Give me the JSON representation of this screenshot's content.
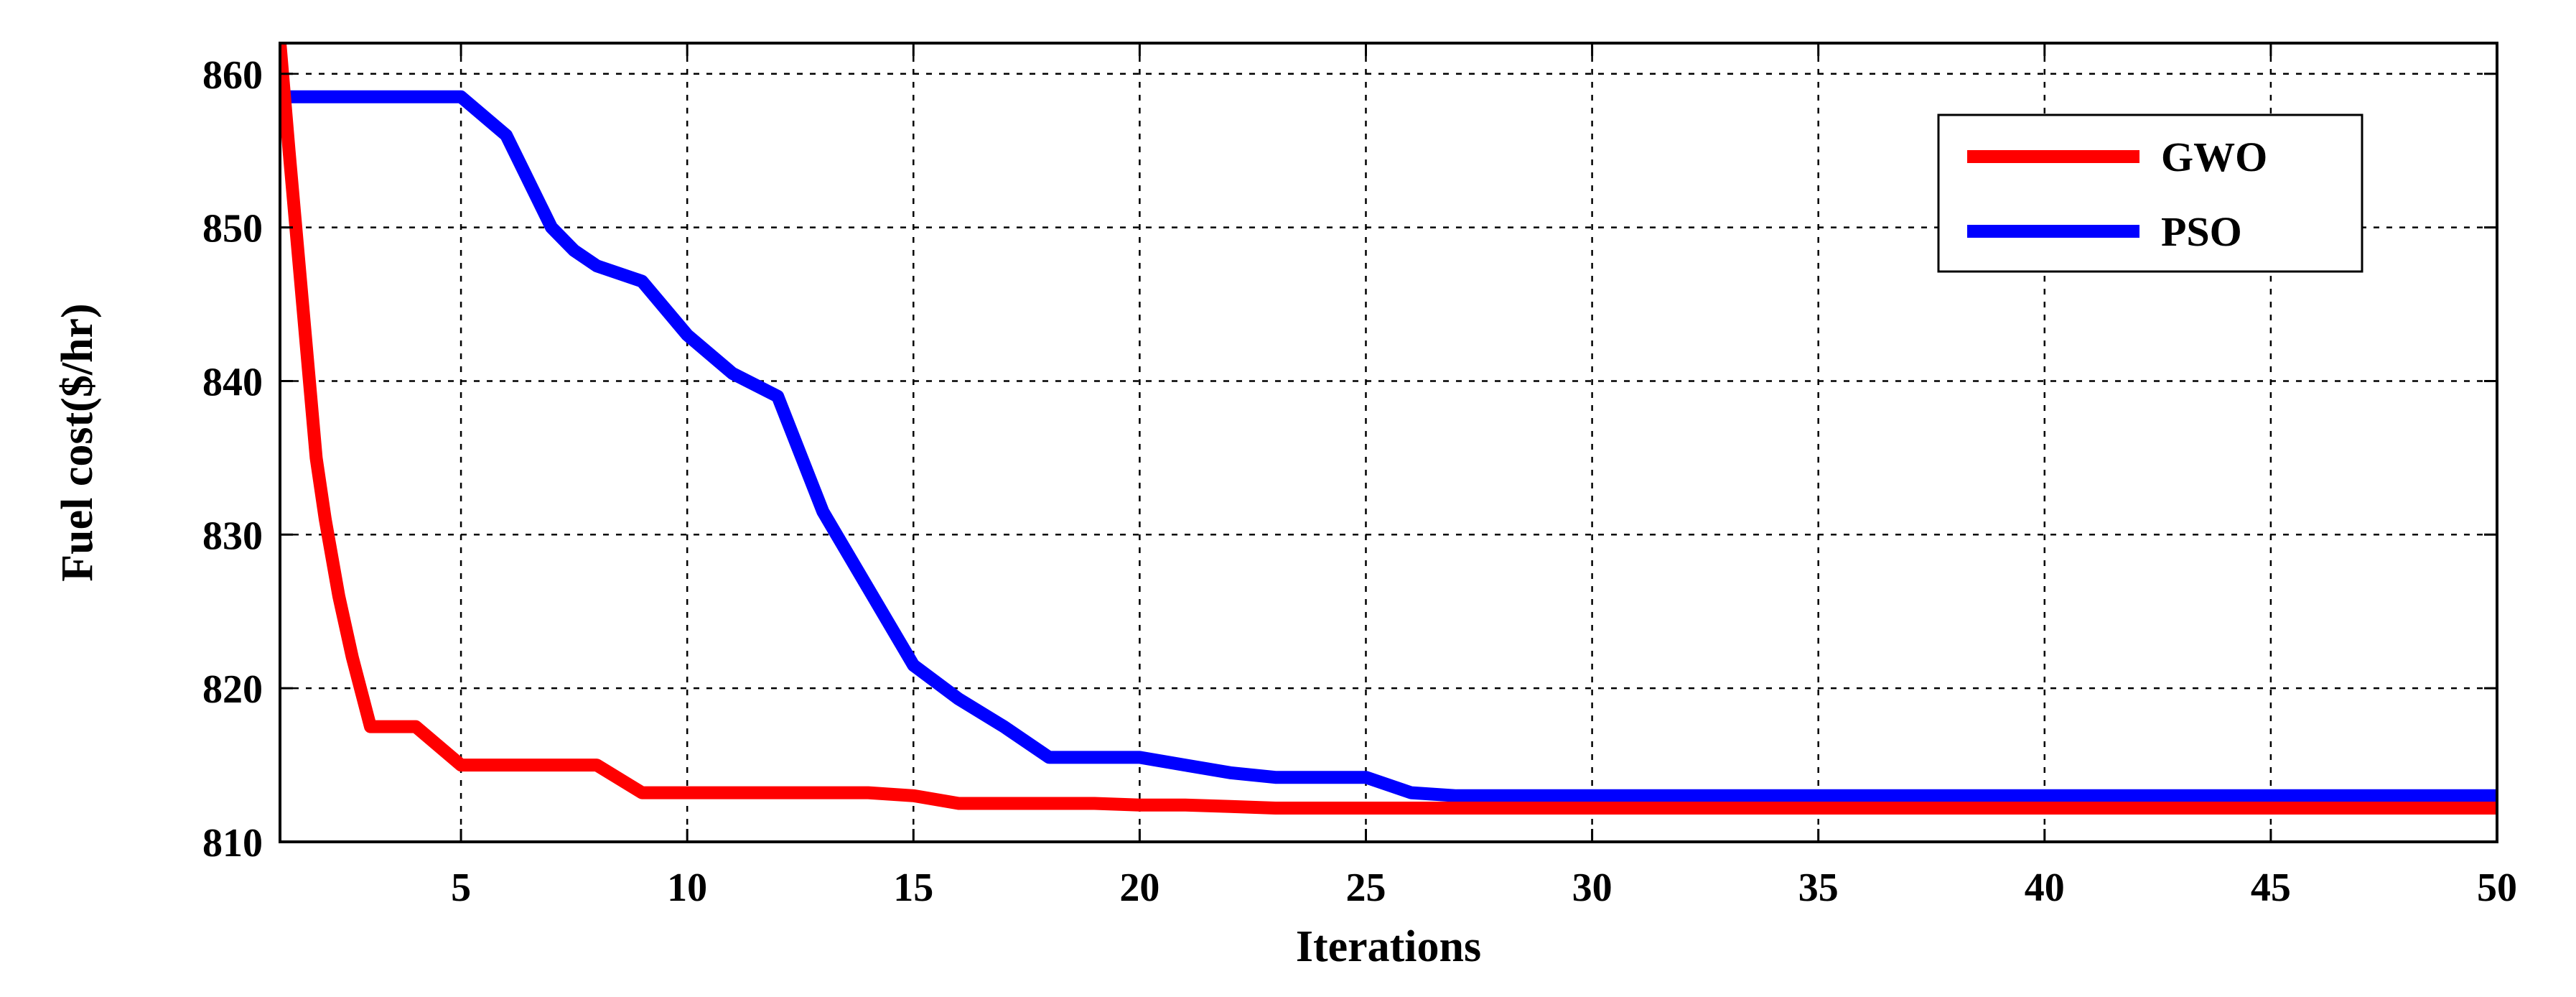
{
  "chart_data": {
    "type": "line",
    "title": "",
    "xlabel": "Iterations",
    "ylabel": "Fuel cost($/hr)",
    "xlim": [
      1,
      50
    ],
    "ylim": [
      810,
      862
    ],
    "xticks": [
      5,
      10,
      15,
      20,
      25,
      30,
      35,
      40,
      45,
      50
    ],
    "yticks": [
      810,
      820,
      830,
      840,
      850,
      860
    ],
    "grid": true,
    "legend_position": "top-right",
    "series": [
      {
        "name": "GWO",
        "color": "#ff0000",
        "x": [
          1,
          1.2,
          1.5,
          1.8,
          2,
          2.3,
          2.6,
          3,
          4,
          5,
          6,
          7,
          8,
          9,
          10,
          11,
          12,
          13,
          14,
          15,
          16,
          17,
          18,
          19,
          20,
          21,
          22,
          23,
          24,
          25,
          26,
          27,
          28,
          30,
          35,
          40,
          45,
          50
        ],
        "y": [
          862,
          855,
          845,
          835,
          831,
          826,
          822,
          817.5,
          817.5,
          815,
          815,
          815,
          815,
          813.2,
          813.2,
          813.2,
          813.2,
          813.2,
          813.2,
          813,
          812.5,
          812.5,
          812.5,
          812.5,
          812.4,
          812.4,
          812.3,
          812.2,
          812.2,
          812.2,
          812.2,
          812.2,
          812.2,
          812.2,
          812.2,
          812.2,
          812.2,
          812.2
        ]
      },
      {
        "name": "PSO",
        "color": "#0000ff",
        "x": [
          1,
          2,
          3,
          4,
          5,
          6,
          6.5,
          7,
          7.5,
          8,
          9,
          10,
          11,
          12,
          13,
          14,
          15,
          16,
          17,
          18,
          19,
          20,
          21,
          22,
          23,
          24,
          25,
          26,
          27,
          28,
          29,
          30,
          35,
          40,
          45,
          50
        ],
        "y": [
          858.5,
          858.5,
          858.5,
          858.5,
          858.5,
          856,
          853,
          850,
          848.5,
          847.5,
          846.5,
          843,
          840.5,
          839,
          831.5,
          826.5,
          821.5,
          819.3,
          817.5,
          815.5,
          815.5,
          815.5,
          815,
          814.5,
          814.2,
          814.2,
          814.2,
          813.2,
          813,
          813,
          813,
          813,
          813,
          813,
          813,
          813
        ]
      }
    ]
  }
}
